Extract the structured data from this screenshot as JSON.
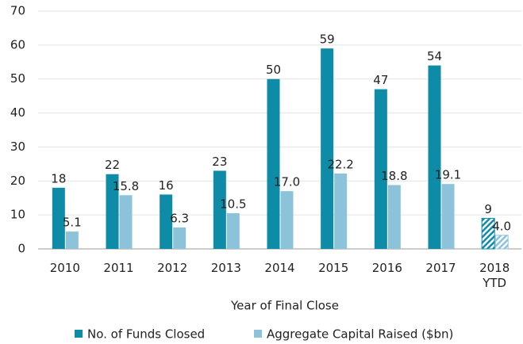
{
  "chart_data": {
    "type": "bar",
    "categories": [
      "2010",
      "2011",
      "2012",
      "2013",
      "2014",
      "2015",
      "2016",
      "2017",
      "2018 YTD"
    ],
    "series": [
      {
        "name": "No. of Funds Closed",
        "color": "#0e8ba6",
        "values": [
          18,
          22,
          16,
          23,
          50,
          59,
          47,
          54,
          9
        ]
      },
      {
        "name": "Aggregate Capital Raised ($bn)",
        "color": "#8cc3db",
        "values": [
          5.1,
          15.8,
          6.3,
          10.5,
          17.0,
          22.2,
          18.8,
          19.1,
          4.0
        ],
        "value_labels": [
          "5.1",
          "15.8",
          "6.3",
          "10.5",
          "17.0",
          "22.2",
          "18.8",
          "19.1",
          "4.0"
        ]
      }
    ],
    "hatched": [
      false,
      false,
      false,
      false,
      false,
      false,
      false,
      false,
      true
    ],
    "xlabel": "Year of Final Close",
    "ylim": [
      0,
      70
    ],
    "yticks": [
      0,
      10,
      20,
      30,
      40,
      50,
      60,
      70
    ],
    "grid": true,
    "legend": "bottom"
  }
}
